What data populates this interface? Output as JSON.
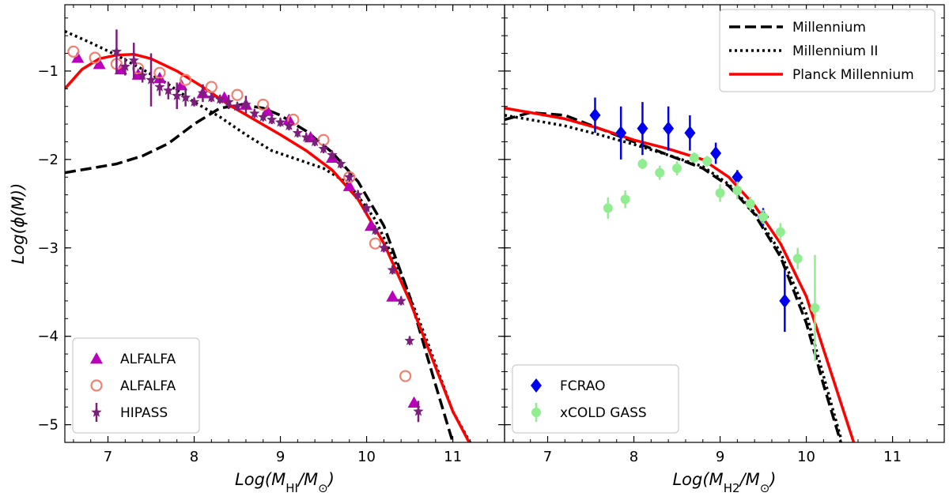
{
  "chart_data": [
    {
      "type": "line",
      "panel": "left",
      "title": "",
      "xlabel": "Log(M_HI/M_⊙)",
      "xlabel_main": "Log(M",
      "xlabel_sub": "HI",
      "xlabel_tail": "/M",
      "xlabel_sub2": "⊙",
      "xlabel_end": ")",
      "ylabel": "Log(ϕ(M))",
      "xlim": [
        6.5,
        11.6
      ],
      "ylim": [
        -5.2,
        -0.25
      ],
      "xticks": [
        7,
        8,
        9,
        10,
        11
      ],
      "yticks": [
        -1,
        -2,
        -3,
        -4,
        -5
      ],
      "xtick_labels": [
        "7",
        "8",
        "9",
        "10",
        "11"
      ],
      "ytick_labels": [
        "−1",
        "−2",
        "−3",
        "−4",
        "−5"
      ],
      "lines": [
        {
          "name": "Millennium",
          "style": "dashed",
          "color": "#000000",
          "x": [
            6.5,
            6.8,
            7.1,
            7.4,
            7.7,
            8.0,
            8.3,
            8.55,
            8.8,
            9.0,
            9.3,
            9.6,
            9.9,
            10.2,
            10.5,
            10.8,
            11.0
          ],
          "y": [
            -2.15,
            -2.1,
            -2.05,
            -1.96,
            -1.82,
            -1.6,
            -1.42,
            -1.38,
            -1.42,
            -1.5,
            -1.68,
            -1.92,
            -2.25,
            -2.75,
            -3.55,
            -4.55,
            -5.2
          ]
        },
        {
          "name": "Millennium II",
          "style": "dotted",
          "color": "#000000",
          "x": [
            6.5,
            6.8,
            7.1,
            7.4,
            7.7,
            8.0,
            8.3,
            8.6,
            8.9,
            9.2,
            9.5,
            9.8,
            10.1,
            10.4,
            10.7,
            11.0,
            11.2
          ],
          "y": [
            -0.55,
            -0.68,
            -0.82,
            -0.98,
            -1.15,
            -1.35,
            -1.52,
            -1.72,
            -1.9,
            -2.0,
            -2.1,
            -2.28,
            -2.68,
            -3.3,
            -4.05,
            -4.85,
            -5.2
          ]
        },
        {
          "name": "Planck Millennium",
          "style": "solid",
          "color": "#ff0000",
          "x": [
            6.5,
            6.7,
            6.9,
            7.1,
            7.3,
            7.5,
            7.8,
            8.1,
            8.4,
            8.7,
            9.0,
            9.3,
            9.6,
            9.9,
            10.2,
            10.5,
            10.8,
            11.0,
            11.2
          ],
          "y": [
            -1.2,
            -0.98,
            -0.86,
            -0.82,
            -0.81,
            -0.86,
            -1.0,
            -1.18,
            -1.38,
            -1.55,
            -1.72,
            -1.9,
            -2.12,
            -2.45,
            -2.95,
            -3.6,
            -4.35,
            -4.85,
            -5.22
          ]
        }
      ],
      "markers": [
        {
          "name": "ALFALFA",
          "marker": "triangle",
          "color": "#bb00bb",
          "x": [
            6.65,
            6.9,
            7.15,
            7.35,
            7.6,
            7.85,
            8.1,
            8.35,
            8.6,
            8.85,
            9.1,
            9.35,
            9.6,
            9.8,
            10.05,
            10.3,
            10.55
          ],
          "y": [
            -0.85,
            -0.92,
            -0.98,
            -1.04,
            -1.08,
            -1.16,
            -1.25,
            -1.3,
            -1.38,
            -1.45,
            -1.55,
            -1.75,
            -1.98,
            -2.3,
            -2.75,
            -3.55,
            -4.75
          ]
        },
        {
          "name": "ALFALFA",
          "marker": "circle-open",
          "color": "#f08070",
          "x": [
            6.6,
            6.85,
            7.1,
            7.35,
            7.6,
            7.9,
            8.2,
            8.5,
            8.8,
            9.15,
            9.5,
            9.8,
            10.1,
            10.45
          ],
          "y": [
            -0.78,
            -0.85,
            -0.92,
            -0.97,
            -1.02,
            -1.1,
            -1.18,
            -1.27,
            -1.38,
            -1.55,
            -1.78,
            -2.2,
            -2.95,
            -4.45
          ]
        },
        {
          "name": "HIPASS",
          "marker": "star",
          "color": "#7b1f7b",
          "x": [
            7.1,
            7.2,
            7.3,
            7.4,
            7.5,
            7.6,
            7.7,
            7.8,
            7.9,
            8.0,
            8.1,
            8.2,
            8.3,
            8.4,
            8.5,
            8.6,
            8.7,
            8.8,
            8.9,
            9.0,
            9.1,
            9.2,
            9.3,
            9.4,
            9.5,
            9.6,
            9.7,
            9.8,
            9.9,
            10.0,
            10.1,
            10.2,
            10.3,
            10.4,
            10.5,
            10.6
          ],
          "y": [
            -0.78,
            -0.95,
            -0.88,
            -1.05,
            -1.1,
            -1.18,
            -1.22,
            -1.28,
            -1.3,
            -1.35,
            -1.25,
            -1.3,
            -1.32,
            -1.35,
            -1.4,
            -1.38,
            -1.48,
            -1.52,
            -1.55,
            -1.58,
            -1.62,
            -1.7,
            -1.75,
            -1.8,
            -1.88,
            -1.95,
            -2.05,
            -2.2,
            -2.4,
            -2.55,
            -2.8,
            -3.0,
            -3.25,
            -3.6,
            -4.05,
            -4.85
          ],
          "yerr": [
            0.25,
            0.1,
            0.2,
            0.08,
            0.3,
            0.1,
            0.1,
            0.15,
            0.1,
            0.05,
            0.1,
            0.05,
            0.05,
            0.08,
            0.05,
            0.1,
            0.05,
            0.05,
            0.05,
            0.05,
            0.05,
            0.05,
            0.05,
            0.05,
            0.05,
            0.05,
            0.05,
            0.05,
            0.05,
            0.05,
            0.05,
            0.05,
            0.05,
            0.05,
            0.05,
            0.12
          ]
        }
      ],
      "legend": {
        "placement": "lower-left",
        "entries": [
          {
            "label": "ALFALFA",
            "marker": "triangle",
            "color": "#bb00bb"
          },
          {
            "label": "ALFALFA",
            "marker": "circle-open",
            "color": "#f08070"
          },
          {
            "label": "HIPASS",
            "marker": "star",
            "color": "#7b1f7b"
          }
        ]
      }
    },
    {
      "type": "line",
      "panel": "right",
      "title": "",
      "xlabel": "Log(M_H2/M_⊙)",
      "xlabel_main": "Log(M",
      "xlabel_sub": "H2",
      "xlabel_tail": "/M",
      "xlabel_sub2": "⊙",
      "xlabel_end": ")",
      "xlim": [
        6.5,
        11.6
      ],
      "ylim": [
        -5.2,
        -0.25
      ],
      "xticks": [
        7,
        8,
        9,
        10,
        11
      ],
      "yticks": [
        -1,
        -2,
        -3,
        -4,
        -5
      ],
      "xtick_labels": [
        "7",
        "8",
        "9",
        "10",
        "11"
      ],
      "lines": [
        {
          "name": "Millennium",
          "style": "dashed",
          "color": "#000000",
          "x": [
            6.5,
            6.8,
            7.2,
            7.6,
            8.0,
            8.4,
            8.8,
            9.1,
            9.4,
            9.7,
            10.0,
            10.2,
            10.4
          ],
          "y": [
            -1.55,
            -1.47,
            -1.5,
            -1.65,
            -1.8,
            -1.95,
            -2.1,
            -2.3,
            -2.62,
            -3.1,
            -3.85,
            -4.55,
            -5.2
          ]
        },
        {
          "name": "Millennium II",
          "style": "dotted",
          "color": "#000000",
          "x": [
            6.5,
            6.8,
            7.2,
            7.6,
            8.0,
            8.4,
            8.8,
            9.1,
            9.4,
            9.7,
            10.0,
            10.2,
            10.4
          ],
          "y": [
            -1.5,
            -1.55,
            -1.62,
            -1.72,
            -1.83,
            -1.95,
            -2.08,
            -2.28,
            -2.6,
            -3.05,
            -3.75,
            -4.45,
            -5.15
          ]
        },
        {
          "name": "Planck Millennium",
          "style": "solid",
          "color": "#ff0000",
          "x": [
            6.5,
            6.8,
            7.2,
            7.6,
            8.0,
            8.4,
            8.8,
            9.1,
            9.4,
            9.7,
            10.0,
            10.3,
            10.55
          ],
          "y": [
            -1.42,
            -1.47,
            -1.54,
            -1.65,
            -1.78,
            -1.88,
            -2.0,
            -2.2,
            -2.52,
            -2.95,
            -3.55,
            -4.45,
            -5.2
          ]
        }
      ],
      "markers": [
        {
          "name": "FCRAO",
          "marker": "diamond",
          "color": "#0000ee",
          "x": [
            7.55,
            7.85,
            8.1,
            8.4,
            8.65,
            8.95,
            9.2,
            9.5,
            9.75
          ],
          "y": [
            -1.5,
            -1.7,
            -1.65,
            -1.65,
            -1.7,
            -1.93,
            -2.2,
            -2.65,
            -3.6
          ],
          "yerr": [
            0.2,
            0.3,
            0.3,
            0.25,
            0.2,
            0.12,
            0.08,
            0.1,
            0.35
          ]
        },
        {
          "name": "xCOLD GASS",
          "marker": "circle",
          "color": "#90ee90",
          "x": [
            7.7,
            7.9,
            8.1,
            8.3,
            8.5,
            8.7,
            8.85,
            9.0,
            9.2,
            9.35,
            9.5,
            9.7,
            9.9,
            10.1
          ],
          "y": [
            -2.55,
            -2.45,
            -2.05,
            -2.15,
            -2.1,
            -1.98,
            -2.02,
            -2.38,
            -2.35,
            -2.5,
            -2.65,
            -2.82,
            -3.12,
            -3.68
          ],
          "yerr": [
            0.12,
            0.1,
            0.06,
            0.08,
            0.08,
            0.06,
            0.06,
            0.1,
            0.1,
            0.08,
            0.08,
            0.1,
            0.12,
            0.6
          ]
        }
      ],
      "legend": {
        "placement": "lower-left",
        "entries": [
          {
            "label": "FCRAO",
            "marker": "diamond",
            "color": "#0000ee"
          },
          {
            "label": "xCOLD GASS",
            "marker": "circle",
            "color": "#90ee90"
          }
        ]
      }
    }
  ],
  "top_legend": {
    "placement": "upper-right",
    "entries": [
      {
        "label": "Millennium",
        "style": "dashed",
        "color": "#000000"
      },
      {
        "label": "Millennium II",
        "style": "dotted",
        "color": "#000000"
      },
      {
        "label": "Planck Millennium",
        "style": "solid",
        "color": "#ff0000"
      }
    ]
  }
}
